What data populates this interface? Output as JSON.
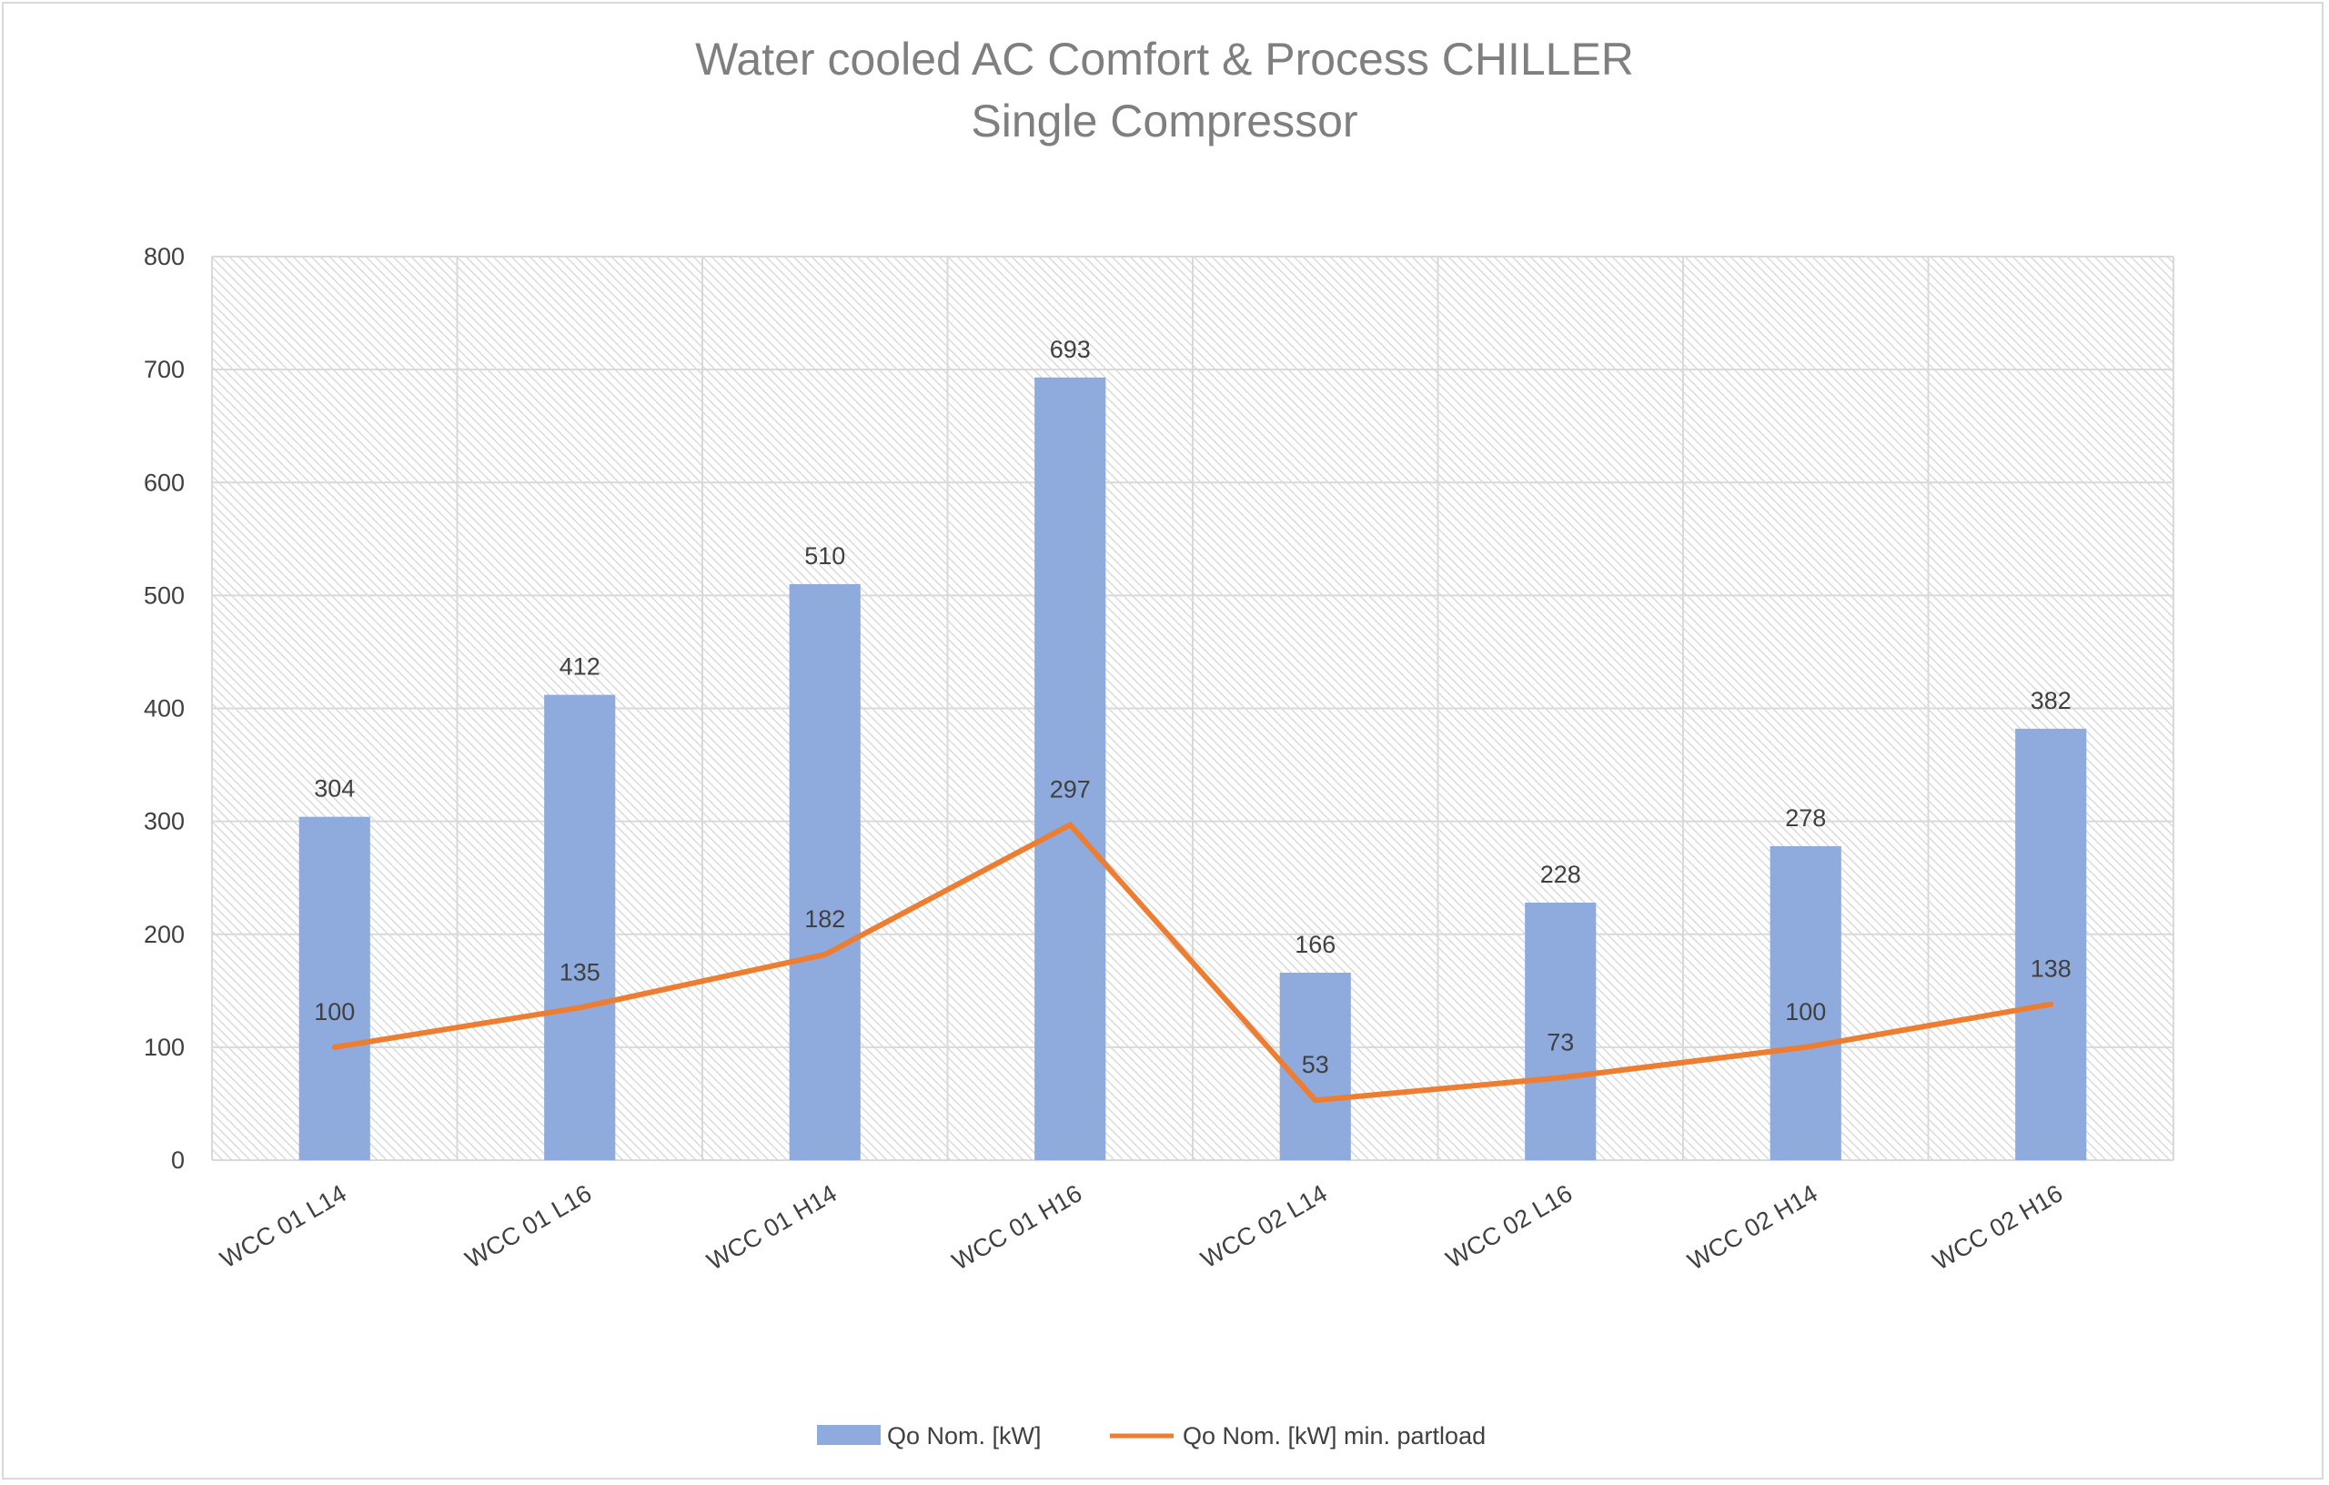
{
  "chart_data": {
    "type": "bar",
    "title": "Water cooled AC Comfort & Process CHILLER",
    "subtitle": "Single Compressor",
    "categories": [
      "WCC 01 L14",
      "WCC 01 L16",
      "WCC 01 H14",
      "WCC 01 H16",
      "WCC 02 L14",
      "WCC 02 L16",
      "WCC 02 H14",
      "WCC 02 H16"
    ],
    "series": [
      {
        "name": "Qo Nom. [kW]",
        "type": "bar",
        "color": "#8faadc",
        "values": [
          304,
          412,
          510,
          693,
          166,
          228,
          278,
          382
        ]
      },
      {
        "name": "Qo Nom. [kW] min. partload",
        "type": "line",
        "color": "#ed7d31",
        "values": [
          100,
          135,
          182,
          297,
          53,
          73,
          100,
          138
        ]
      }
    ],
    "ylim": [
      0,
      800
    ],
    "yticks": [
      0,
      100,
      200,
      300,
      400,
      500,
      600,
      700,
      800
    ],
    "xlabel": "",
    "ylabel": "",
    "grid": true,
    "legend": "bottom"
  }
}
